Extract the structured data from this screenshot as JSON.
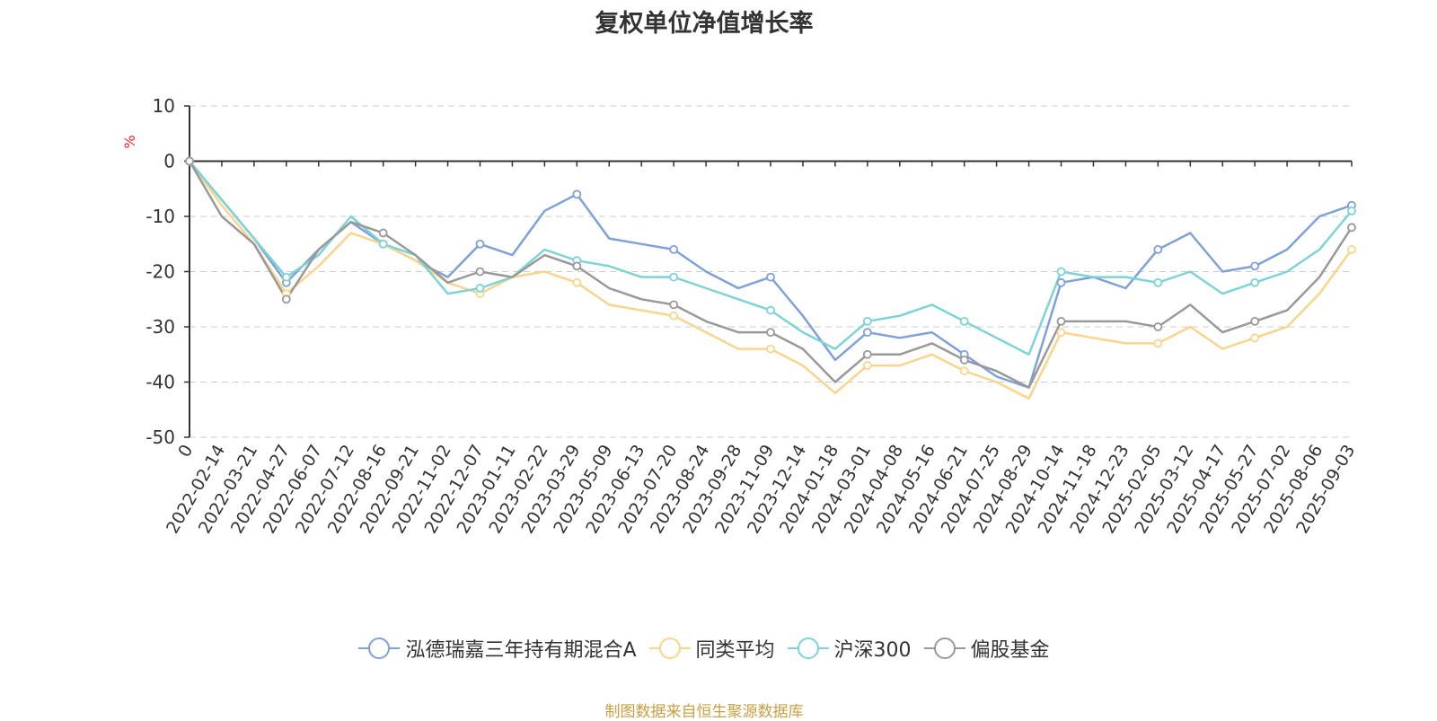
{
  "chart_data": {
    "type": "line",
    "title": "复权单位净值增长率",
    "ylabel": "%",
    "ylim": [
      -50,
      10
    ],
    "yticks": [
      10,
      0,
      -10,
      -20,
      -30,
      -40,
      -50
    ],
    "grid": true,
    "legend_position": "bottom",
    "x_tick_labels": [
      "0",
      "2022-02-14",
      "2022-03-21",
      "2022-04-27",
      "2022-06-07",
      "2022-07-12",
      "2022-08-16",
      "2022-09-21",
      "2022-11-02",
      "2022-12-07",
      "2023-01-11",
      "2023-02-22",
      "2023-03-29",
      "2023-05-09",
      "2023-06-13",
      "2023-07-20",
      "2023-08-24",
      "2023-09-28",
      "2023-11-09",
      "2023-12-14",
      "2024-01-18",
      "2024-03-01",
      "2024-04-08",
      "2024-05-16",
      "2024-06-21",
      "2024-07-25",
      "2024-08-29",
      "2024-10-14",
      "2024-11-18",
      "2024-12-23",
      "2025-02-05",
      "2025-03-12",
      "2025-04-17",
      "2025-05-27",
      "2025-07-02",
      "2025-08-06",
      "2025-09-03"
    ],
    "x": [
      "0",
      "2022-02-14",
      "2022-03-21",
      "2022-04-27",
      "2022-06-07",
      "2022-07-12",
      "2022-08-16",
      "2022-09-21",
      "2022-11-02",
      "2022-12-07",
      "2023-01-11",
      "2023-02-22",
      "2023-03-29",
      "2023-05-09",
      "2023-06-13",
      "2023-07-20",
      "2023-08-24",
      "2023-09-28",
      "2023-11-09",
      "2023-12-14",
      "2024-01-18",
      "2024-03-01",
      "2024-04-08",
      "2024-05-16",
      "2024-06-21",
      "2024-07-25",
      "2024-08-29",
      "2024-10-14",
      "2024-11-18",
      "2024-12-23",
      "2025-02-05",
      "2025-03-12",
      "2025-04-17",
      "2025-05-27",
      "2025-07-02",
      "2025-08-06",
      "2025-09-03"
    ],
    "series": [
      {
        "name": "泓德瑞嘉三年持有期混合A",
        "color": "#7ea1d8",
        "values": [
          0,
          -7,
          -14,
          -22,
          -16,
          -11,
          -15,
          -18,
          -21,
          -15,
          -17,
          -9,
          -6,
          -14,
          -15,
          -16,
          -20,
          -23,
          -21,
          -28,
          -36,
          -31,
          -32,
          -31,
          -35,
          -39,
          -41,
          -22,
          -21,
          -23,
          -16,
          -13,
          -20,
          -19,
          -16,
          -10,
          -8
        ]
      },
      {
        "name": "同类平均",
        "color": "#f9d58c",
        "values": [
          0,
          -8,
          -15,
          -24,
          -19,
          -13,
          -15,
          -18,
          -22,
          -24,
          -21,
          -20,
          -22,
          -26,
          -27,
          -28,
          -31,
          -34,
          -34,
          -37,
          -42,
          -37,
          -37,
          -35,
          -38,
          -40,
          -43,
          -31,
          -32,
          -33,
          -33,
          -30,
          -34,
          -32,
          -30,
          -24,
          -16
        ]
      },
      {
        "name": "沪深300",
        "color": "#7dd3d6",
        "values": [
          0,
          -7,
          -14,
          -21,
          -17,
          -10,
          -15,
          -17,
          -24,
          -23,
          -21,
          -16,
          -18,
          -19,
          -21,
          -21,
          -23,
          -25,
          -27,
          -31,
          -34,
          -29,
          -28,
          -26,
          -29,
          -32,
          -35,
          -20,
          -21,
          -21,
          -22,
          -20,
          -24,
          -22,
          -20,
          -16,
          -9
        ]
      },
      {
        "name": "偏股基金",
        "color": "#999999",
        "values": [
          0,
          -10,
          -15,
          -25,
          -16,
          -11,
          -13,
          -17,
          -22,
          -20,
          -21,
          -17,
          -19,
          -23,
          -25,
          -26,
          -29,
          -31,
          -31,
          -34,
          -40,
          -35,
          -35,
          -33,
          -36,
          -38,
          -41,
          -29,
          -29,
          -29,
          -30,
          -26,
          -31,
          -29,
          -27,
          -21,
          -12
        ]
      }
    ]
  },
  "source_note": "制图数据来自恒生聚源数据库"
}
